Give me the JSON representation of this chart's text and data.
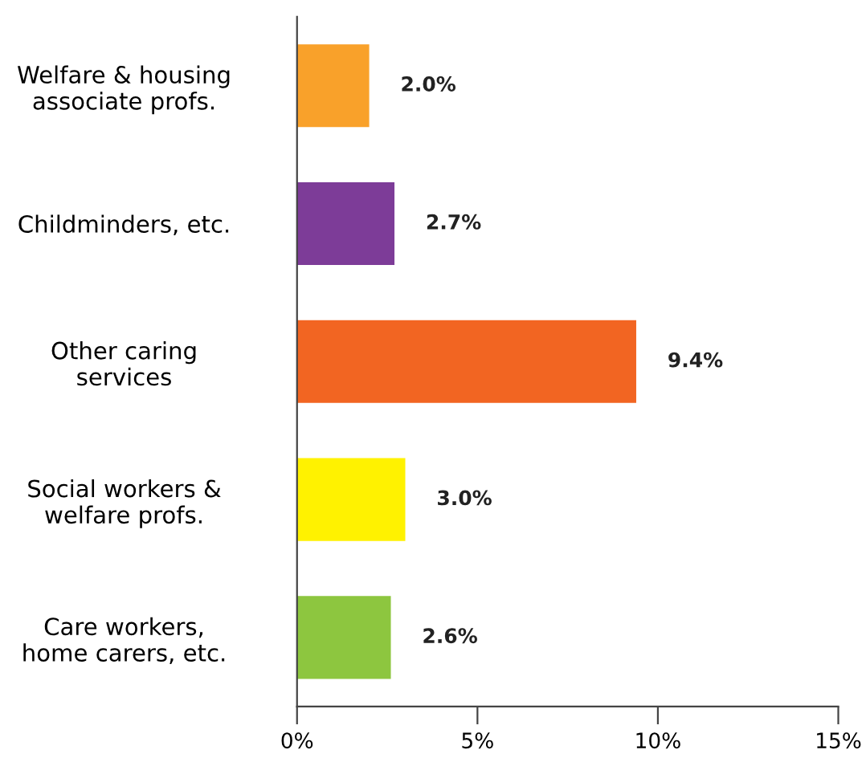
{
  "chart_data": {
    "type": "bar",
    "orientation": "horizontal",
    "categories": [
      "Welfare & housing\nassociate profs.",
      "Childminders, etc.",
      "Other caring\nservices",
      "Social workers &\nwelfare profs.",
      "Care workers,\nhome carers, etc."
    ],
    "values": [
      2.0,
      2.7,
      9.4,
      3.0,
      2.6
    ],
    "colors": [
      "#f9a12a",
      "#7d3c98",
      "#f26522",
      "#fff200",
      "#8dc63f"
    ],
    "value_labels": [
      "2.0%",
      "2.7%",
      "9.4%",
      "3.0%",
      "2.6%"
    ],
    "xlim": [
      0,
      15
    ],
    "xticks": [
      {
        "value": 0,
        "label": "0%"
      },
      {
        "value": 5,
        "label": "5%"
      },
      {
        "value": 10,
        "label": "10%"
      },
      {
        "value": 15,
        "label": "15%"
      }
    ],
    "grid": false,
    "legend": false
  }
}
